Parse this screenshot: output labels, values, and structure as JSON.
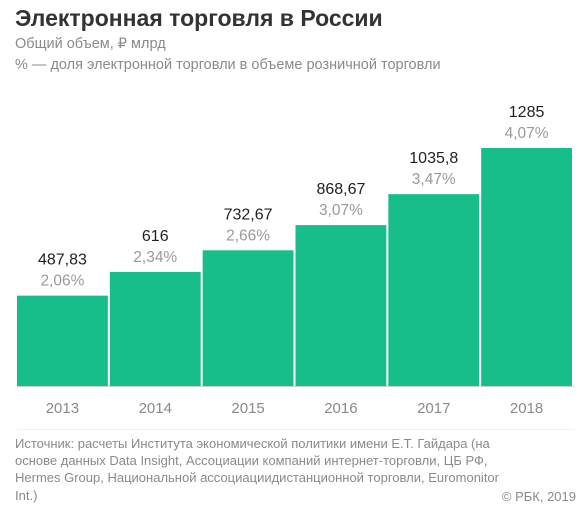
{
  "header": {
    "title": "Электронная торговля в России",
    "subtitle_1": "Общий объем, ₽ млрд",
    "subtitle_2": "% — доля электронной торговли в объеме розничной торговли"
  },
  "chart_data": {
    "type": "bar",
    "categories": [
      "2013",
      "2014",
      "2015",
      "2016",
      "2017",
      "2018"
    ],
    "series": [
      {
        "values": [
          487.83,
          616,
          732.67,
          868.67,
          1035.8,
          1285
        ],
        "labels": [
          "487,83",
          "616",
          "732,67",
          "868,67",
          "1035,8",
          "1285"
        ]
      },
      {
        "values": [
          2.06,
          2.34,
          2.66,
          3.07,
          3.47,
          4.07
        ],
        "labels": [
          "2,06%",
          "2,34%",
          "2,66%",
          "3,07%",
          "3,47%",
          "4,07%"
        ]
      }
    ],
    "grid": false,
    "colors": {
      "bar": "#17be8a",
      "axis": "#cfcfcf",
      "value": "#222222",
      "share": "#9a9a9a",
      "tick": "#8a8a8a"
    }
  },
  "footer": {
    "source": "Источник: расчеты Института экономической политики имени Е.Т. Гайдара (на основе данных Data Insight, Ассоциации компаний интернет-торговли, ЦБ РФ, Hermes Group, Национальной ассоциациидистанционной торговли, Euromonitor Int.)",
    "copyright": "© РБК, 2019"
  }
}
